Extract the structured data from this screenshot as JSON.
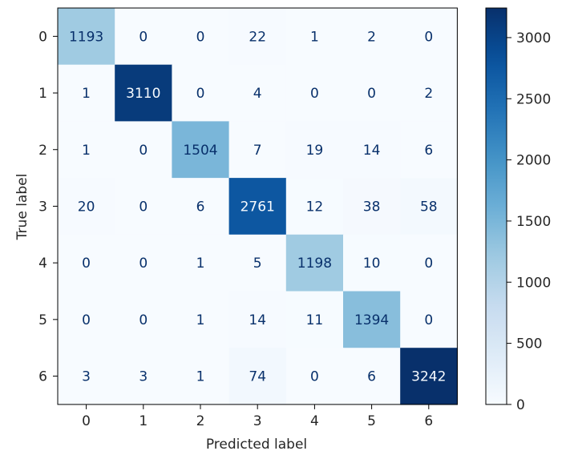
{
  "chart_data": {
    "type": "heatmap",
    "title": "",
    "xlabel": "Predicted label",
    "ylabel": "True label",
    "x_categories": [
      "0",
      "1",
      "2",
      "3",
      "4",
      "5",
      "6"
    ],
    "y_categories": [
      "0",
      "1",
      "2",
      "3",
      "4",
      "5",
      "6"
    ],
    "matrix": [
      [
        1193,
        0,
        0,
        22,
        1,
        2,
        0
      ],
      [
        1,
        3110,
        0,
        4,
        0,
        0,
        2
      ],
      [
        1,
        0,
        1504,
        7,
        19,
        14,
        6
      ],
      [
        20,
        0,
        6,
        2761,
        12,
        38,
        58
      ],
      [
        0,
        0,
        1,
        5,
        1198,
        10,
        0
      ],
      [
        0,
        0,
        1,
        14,
        11,
        1394,
        0
      ],
      [
        3,
        3,
        1,
        74,
        0,
        6,
        3242
      ]
    ],
    "colormap": "Blues",
    "colorbar": {
      "min": 0,
      "max": 3242,
      "ticks": [
        0,
        500,
        1000,
        1500,
        2000,
        2500,
        3000
      ],
      "tick_labels": [
        "0",
        "500",
        "1000",
        "1500",
        "2000",
        "2500",
        "3000"
      ]
    },
    "grid": false,
    "colors": {
      "low": "#f7fbff",
      "high": "#08306b",
      "text_dark": "#08306b",
      "text_light": "#f7fbff"
    }
  }
}
